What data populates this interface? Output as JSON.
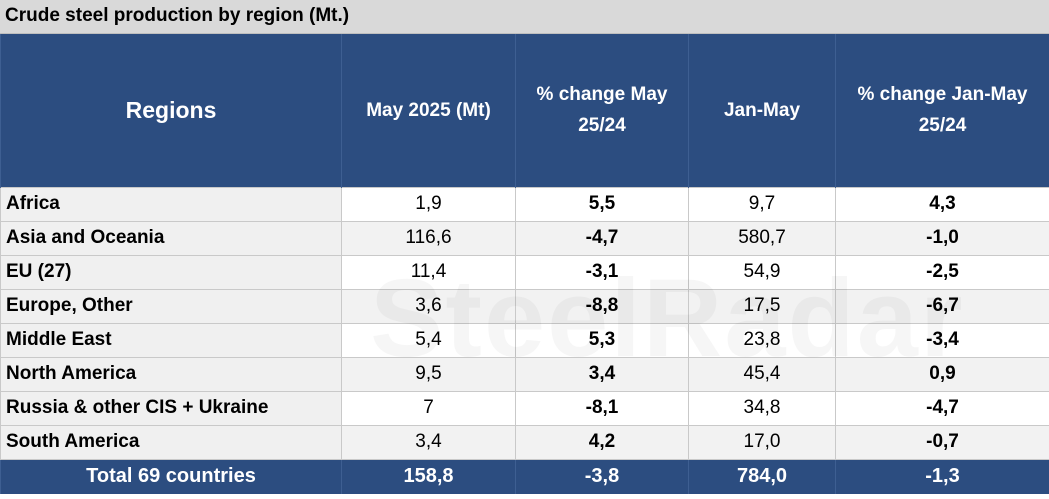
{
  "title": "Crude steel production by region (Mt.)",
  "columns": [
    "Regions",
    "May 2025 (Mt)",
    "% change May 25/24",
    "Jan-May",
    "% change Jan-May 25/24"
  ],
  "rows": [
    {
      "region": "Africa",
      "may": "1,9",
      "may_change": "5,5",
      "janmay": "9,7",
      "janmay_change": "4,3"
    },
    {
      "region": "Asia and Oceania",
      "may": "116,6",
      "may_change": "-4,7",
      "janmay": "580,7",
      "janmay_change": "-1,0"
    },
    {
      "region": "EU (27)",
      "may": "11,4",
      "may_change": "-3,1",
      "janmay": "54,9",
      "janmay_change": "-2,5"
    },
    {
      "region": "Europe, Other",
      "may": "3,6",
      "may_change": "-8,8",
      "janmay": "17,5",
      "janmay_change": "-6,7"
    },
    {
      "region": "Middle East",
      "may": "5,4",
      "may_change": "5,3",
      "janmay": "23,8",
      "janmay_change": "-3,4"
    },
    {
      "region": "North America",
      "may": "9,5",
      "may_change": "3,4",
      "janmay": "45,4",
      "janmay_change": "0,9"
    },
    {
      "region": "Russia & other CIS + Ukraine",
      "may": "7",
      "may_change": "-8,1",
      "janmay": "34,8",
      "janmay_change": "-4,7"
    },
    {
      "region": "South America",
      "may": "3,4",
      "may_change": "4,2",
      "janmay": "17,0",
      "janmay_change": "-0,7"
    }
  ],
  "total": {
    "region": "Total 69 countries",
    "may": "158,8",
    "may_change": "-3,8",
    "janmay": "784,0",
    "janmay_change": "-1,3"
  },
  "watermark": "SteelRadar",
  "colors": {
    "header_bg": "#2c4d80",
    "title_bg": "#d9d9d9"
  }
}
